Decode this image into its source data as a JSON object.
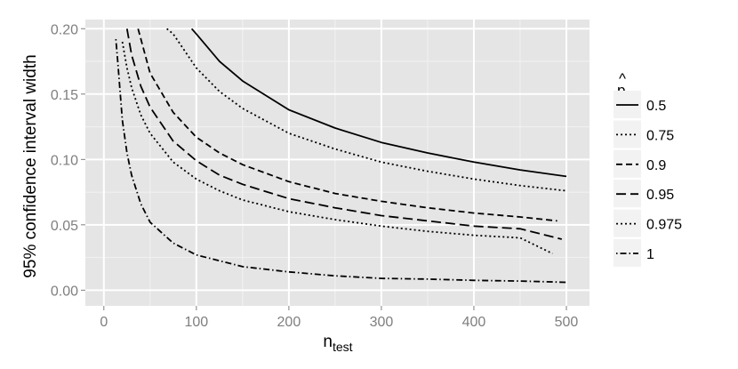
{
  "chart_data": {
    "type": "line",
    "title": "",
    "xlabel": "n",
    "xlabel_subscript": "test",
    "ylabel": "95% confidence interval width",
    "xlim": [
      -20,
      525
    ],
    "ylim": [
      -0.012,
      0.207
    ],
    "x_ticks": [
      0,
      100,
      200,
      300,
      400,
      500
    ],
    "x_tick_labels": [
      "0",
      "100",
      "200",
      "300",
      "400",
      "500"
    ],
    "y_ticks": [
      0.0,
      0.05,
      0.1,
      0.15,
      0.2
    ],
    "y_tick_labels": [
      "0.00",
      "0.05",
      "0.10",
      "0.15",
      "0.20"
    ],
    "grid": true,
    "background": "#e5e5e5",
    "legend_position": "right",
    "legend_title": "p",
    "legend_title_accent": "^",
    "series": [
      {
        "name": "0.5",
        "dash": "solid",
        "points": [
          [
            95,
            0.2
          ],
          [
            100,
            0.196
          ],
          [
            125,
            0.175
          ],
          [
            150,
            0.16
          ],
          [
            200,
            0.138
          ],
          [
            250,
            0.124
          ],
          [
            300,
            0.113
          ],
          [
            350,
            0.105
          ],
          [
            400,
            0.098
          ],
          [
            450,
            0.092
          ],
          [
            500,
            0.087
          ]
        ]
      },
      {
        "name": "0.75",
        "dash": "dotted",
        "points": [
          [
            68,
            0.2
          ],
          [
            75,
            0.196
          ],
          [
            100,
            0.17
          ],
          [
            125,
            0.152
          ],
          [
            150,
            0.139
          ],
          [
            200,
            0.12
          ],
          [
            250,
            0.108
          ],
          [
            300,
            0.098
          ],
          [
            350,
            0.091
          ],
          [
            400,
            0.085
          ],
          [
            450,
            0.08
          ],
          [
            500,
            0.076
          ]
        ]
      },
      {
        "name": "0.9",
        "dash": "dashed",
        "points": [
          [
            37,
            0.2
          ],
          [
            50,
            0.166
          ],
          [
            75,
            0.136
          ],
          [
            100,
            0.117
          ],
          [
            125,
            0.105
          ],
          [
            150,
            0.096
          ],
          [
            200,
            0.083
          ],
          [
            250,
            0.074
          ],
          [
            300,
            0.068
          ],
          [
            350,
            0.063
          ],
          [
            400,
            0.059
          ],
          [
            450,
            0.056
          ],
          [
            490,
            0.053
          ]
        ]
      },
      {
        "name": "0.95",
        "dash": "longdash",
        "points": [
          [
            25,
            0.2
          ],
          [
            30,
            0.18
          ],
          [
            40,
            0.156
          ],
          [
            50,
            0.14
          ],
          [
            75,
            0.114
          ],
          [
            100,
            0.099
          ],
          [
            125,
            0.088
          ],
          [
            150,
            0.081
          ],
          [
            200,
            0.07
          ],
          [
            250,
            0.063
          ],
          [
            300,
            0.057
          ],
          [
            350,
            0.053
          ],
          [
            400,
            0.049
          ],
          [
            450,
            0.047
          ],
          [
            495,
            0.039
          ]
        ]
      },
      {
        "name": "0.975",
        "dash": "dotted",
        "points": [
          [
            20,
            0.19
          ],
          [
            25,
            0.17
          ],
          [
            30,
            0.155
          ],
          [
            40,
            0.134
          ],
          [
            50,
            0.12
          ],
          [
            75,
            0.098
          ],
          [
            100,
            0.085
          ],
          [
            125,
            0.076
          ],
          [
            150,
            0.069
          ],
          [
            200,
            0.06
          ],
          [
            250,
            0.054
          ],
          [
            300,
            0.049
          ],
          [
            350,
            0.045
          ],
          [
            400,
            0.042
          ],
          [
            450,
            0.04
          ],
          [
            485,
            0.028
          ]
        ]
      },
      {
        "name": "1",
        "dash": "dotdash",
        "points": [
          [
            13,
            0.192
          ],
          [
            15,
            0.175
          ],
          [
            20,
            0.13
          ],
          [
            25,
            0.105
          ],
          [
            30,
            0.088
          ],
          [
            40,
            0.066
          ],
          [
            50,
            0.052
          ],
          [
            75,
            0.036
          ],
          [
            100,
            0.027
          ],
          [
            150,
            0.018
          ],
          [
            200,
            0.014
          ],
          [
            250,
            0.011
          ],
          [
            300,
            0.009
          ],
          [
            350,
            0.0085
          ],
          [
            400,
            0.0075
          ],
          [
            450,
            0.007
          ],
          [
            500,
            0.006
          ]
        ]
      }
    ]
  }
}
